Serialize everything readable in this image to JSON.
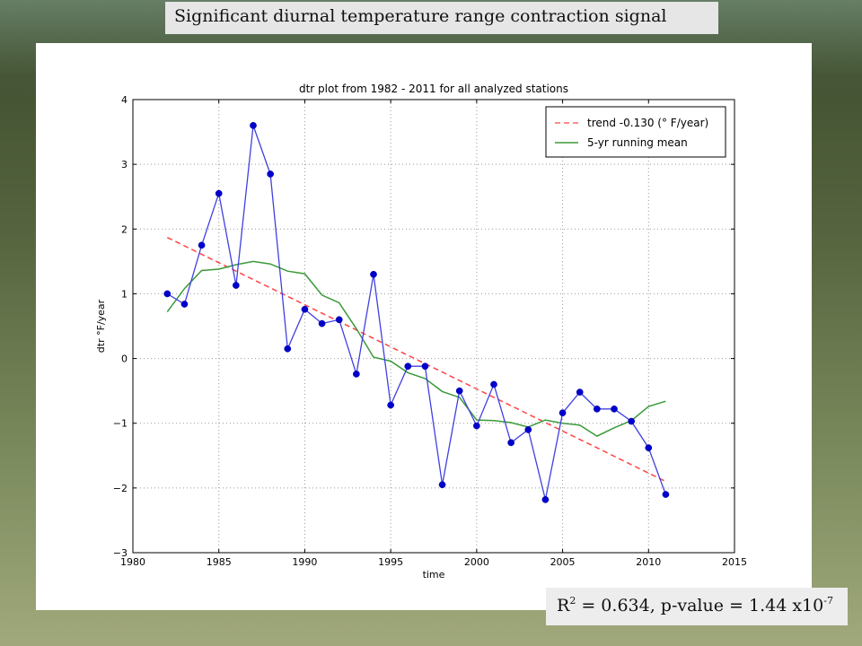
{
  "slide": {
    "title": "Significant diurnal temperature range contraction signal",
    "stats": {
      "r2_label": "R",
      "r2_exp": "2",
      "r2_rest": " = 0.634, p-value = 1.44 x10",
      "pvalue_exp": "-7"
    }
  },
  "chart_data": {
    "type": "line",
    "title": "dtr plot from 1982 - 2011 for all analyzed stations",
    "xlabel": "time",
    "ylabel": "dtr °F/year",
    "xlim": [
      1980,
      2015
    ],
    "ylim": [
      -3,
      4
    ],
    "xticks": [
      1980,
      1985,
      1990,
      1995,
      2000,
      2005,
      2010,
      2015
    ],
    "yticks": [
      -3,
      -2,
      -1,
      0,
      1,
      2,
      3,
      4
    ],
    "ytick_labels": [
      "−3",
      "−2",
      "−1",
      "0",
      "1",
      "2",
      "3",
      "4"
    ],
    "grid": true,
    "legend_position": "top-right",
    "x": [
      1982,
      1983,
      1984,
      1985,
      1986,
      1987,
      1988,
      1989,
      1990,
      1991,
      1992,
      1993,
      1994,
      1995,
      1996,
      1997,
      1998,
      1999,
      2000,
      2001,
      2002,
      2003,
      2004,
      2005,
      2006,
      2007,
      2008,
      2009,
      2010,
      2011
    ],
    "series": [
      {
        "kind": "data",
        "color": "#4040e0",
        "marker": "circle",
        "values": [
          1.0,
          0.84,
          1.75,
          2.55,
          1.13,
          3.6,
          2.85,
          0.15,
          0.76,
          0.54,
          0.6,
          -0.24,
          1.3,
          -0.72,
          -0.12,
          -0.12,
          -1.95,
          -0.5,
          -1.04,
          -0.4,
          -1.3,
          -1.1,
          -2.18,
          -0.84,
          -0.52,
          -0.78,
          -0.78,
          -0.97,
          -1.38,
          -2.1
        ]
      },
      {
        "kind": "trend",
        "name": "trend -0.130 (° F/year)",
        "color": "#ff4444",
        "dashed": true,
        "values": [
          1.87,
          1.74,
          1.61,
          1.48,
          1.35,
          1.22,
          1.09,
          0.96,
          0.83,
          0.7,
          0.57,
          0.44,
          0.31,
          0.18,
          0.05,
          -0.08,
          -0.21,
          -0.34,
          -0.47,
          -0.6,
          -0.73,
          -0.86,
          -0.99,
          -1.12,
          -1.25,
          -1.38,
          -1.51,
          -1.64,
          -1.77,
          -1.9
        ]
      },
      {
        "kind": "running_mean",
        "name": "5-yr running mean",
        "color": "#3a9a3a",
        "values": [
          0.72,
          1.08,
          1.36,
          1.38,
          1.45,
          1.5,
          1.46,
          1.35,
          1.31,
          0.98,
          0.86,
          0.46,
          0.02,
          -0.04,
          -0.22,
          -0.31,
          -0.51,
          -0.6,
          -0.95,
          -0.96,
          -0.99,
          -1.06,
          -0.95,
          -1.0,
          -1.03,
          -1.2,
          -1.07,
          -0.96,
          -0.74,
          -0.66
        ]
      }
    ]
  }
}
